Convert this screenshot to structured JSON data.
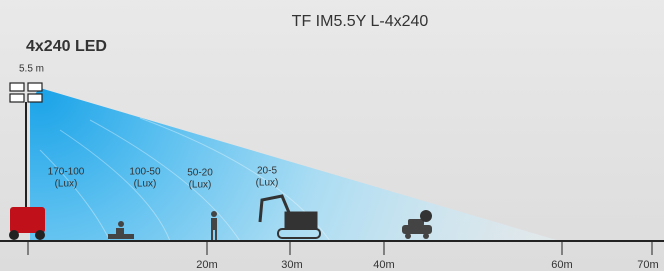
{
  "title": "TF IM5.5Y L-4x240",
  "lamp": "4x240 LED",
  "height": "5.5  m",
  "zones": [
    {
      "range": "170-100",
      "unit": "(Lux)"
    },
    {
      "range": "100-50",
      "unit": "(Lux)"
    },
    {
      "range": "50-20",
      "unit": "(Lux)"
    },
    {
      "range": "20-5",
      "unit": "(Lux)"
    }
  ],
  "distances": [
    "20m",
    "30m",
    "40m",
    "60m",
    "70m"
  ]
}
